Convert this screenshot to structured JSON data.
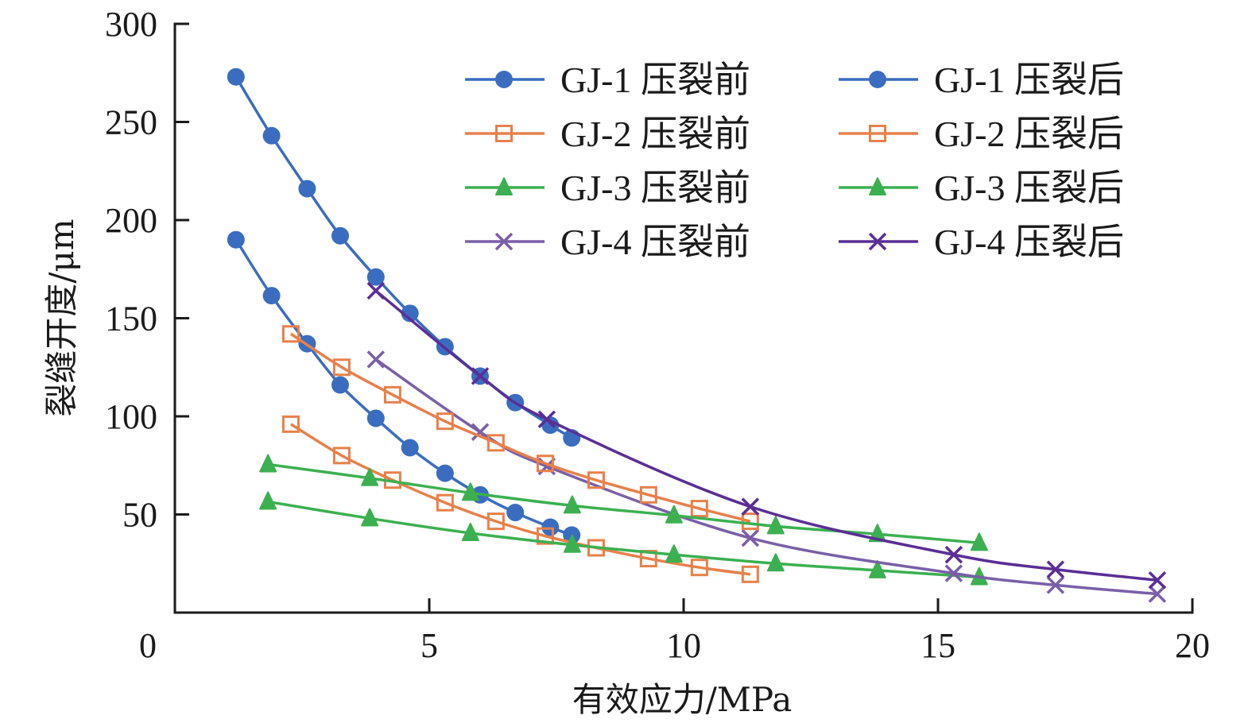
{
  "chart_data": {
    "type": "line",
    "title": "",
    "xlabel": "有效应力/MPa",
    "ylabel": "裂缝开度/μm",
    "xlim": [
      0,
      20
    ],
    "ylim": [
      0,
      300
    ],
    "xticks": [
      0,
      5,
      10,
      15,
      20
    ],
    "yticks": [
      50,
      100,
      150,
      200,
      250,
      300
    ],
    "xtick_labels": [
      "0",
      "5",
      "10",
      "15",
      "20"
    ],
    "ytick_labels": [
      "50",
      "100",
      "150",
      "200",
      "250",
      "300"
    ],
    "origin_label": "0",
    "grid": false,
    "legend_position": "top-right",
    "legend_columns": 2,
    "series": [
      {
        "name": "GJ-1 压裂前",
        "color": "#3a6dbf",
        "marker": "circle",
        "x": [
          1.2,
          1.9,
          2.6,
          3.25,
          3.95,
          4.62,
          5.31,
          6.0,
          6.69,
          7.38,
          7.8
        ],
        "y": [
          190,
          161.5,
          137,
          116,
          99,
          84,
          71,
          60,
          51,
          43.5,
          39.5
        ]
      },
      {
        "name": "GJ-2 压裂前",
        "color": "#e8804a",
        "marker": "square",
        "x": [
          2.28,
          3.28,
          4.28,
          5.31,
          6.31,
          7.28,
          8.28,
          9.31,
          10.31,
          11.31
        ],
        "y": [
          96,
          80,
          67.5,
          56,
          46.5,
          39,
          33,
          27.5,
          23,
          19.5
        ]
      },
      {
        "name": "GJ-3 压裂前",
        "color": "#3cb050",
        "marker": "triangle",
        "x": [
          1.83,
          3.83,
          5.81,
          7.81,
          9.81,
          11.81,
          13.81,
          15.81
        ],
        "y": [
          56.5,
          48,
          40.5,
          34.5,
          29.5,
          25,
          21.5,
          18
        ]
      },
      {
        "name": "GJ-4 压裂前",
        "color": "#7a5fa8",
        "marker": "x",
        "x": [
          3.95,
          6.0,
          7.31,
          11.31,
          15.31,
          17.31,
          19.31
        ],
        "y": [
          129,
          92,
          74.5,
          38,
          20,
          14,
          9.5
        ]
      },
      {
        "name": "GJ-1 压裂后",
        "color": "#3a6dbf",
        "marker": "circle",
        "x": [
          1.2,
          1.9,
          2.6,
          3.25,
          3.95,
          4.62,
          5.31,
          6.0,
          6.69,
          7.38,
          7.8
        ],
        "y": [
          273,
          243,
          216,
          192,
          171,
          152.5,
          135.5,
          120.5,
          107,
          95.5,
          89
        ]
      },
      {
        "name": "GJ-2 压裂后",
        "color": "#e8804a",
        "marker": "square",
        "x": [
          2.28,
          3.28,
          4.28,
          5.31,
          6.31,
          7.28,
          8.28,
          9.31,
          10.31,
          11.31
        ],
        "y": [
          142,
          125,
          111,
          97.5,
          86.5,
          76,
          67.5,
          60,
          53,
          46.5
        ]
      },
      {
        "name": "GJ-3 压裂后",
        "color": "#3cb050",
        "marker": "triangle",
        "x": [
          1.83,
          3.83,
          5.81,
          7.81,
          9.81,
          11.81,
          13.81,
          15.81
        ],
        "y": [
          75.5,
          68.5,
          61,
          54.5,
          49.5,
          44,
          40,
          35.5
        ]
      },
      {
        "name": "GJ-4 压裂后",
        "color": "#5a2e96",
        "marker": "x",
        "x": [
          3.95,
          6.0,
          7.31,
          11.31,
          15.31,
          17.31,
          19.31
        ],
        "y": [
          164,
          120.5,
          98.5,
          54,
          29.5,
          22,
          16.5
        ]
      }
    ]
  }
}
